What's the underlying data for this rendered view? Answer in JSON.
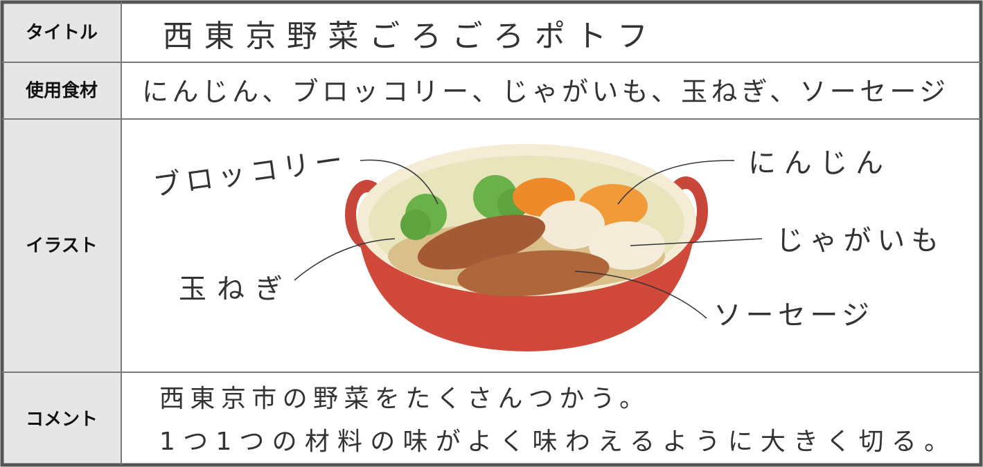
{
  "rows": [
    {
      "label": "タイトル",
      "content": "西東京野菜ごろごろポトフ"
    },
    {
      "label": "使用食材",
      "content": "にんじん、ブロッコリー、じゃがいも、玉ねぎ、ソーセージ"
    },
    {
      "label": "イラスト",
      "callouts": [
        "ブロッコリー",
        "にんじん",
        "じゃがいも",
        "玉ねぎ",
        "ソーセージ"
      ]
    },
    {
      "label": "コメント",
      "lines": [
        "西東京市の野菜をたくさんつかう。",
        "1つ1つの材料の味がよく味わえるように大きく切る。"
      ]
    }
  ]
}
